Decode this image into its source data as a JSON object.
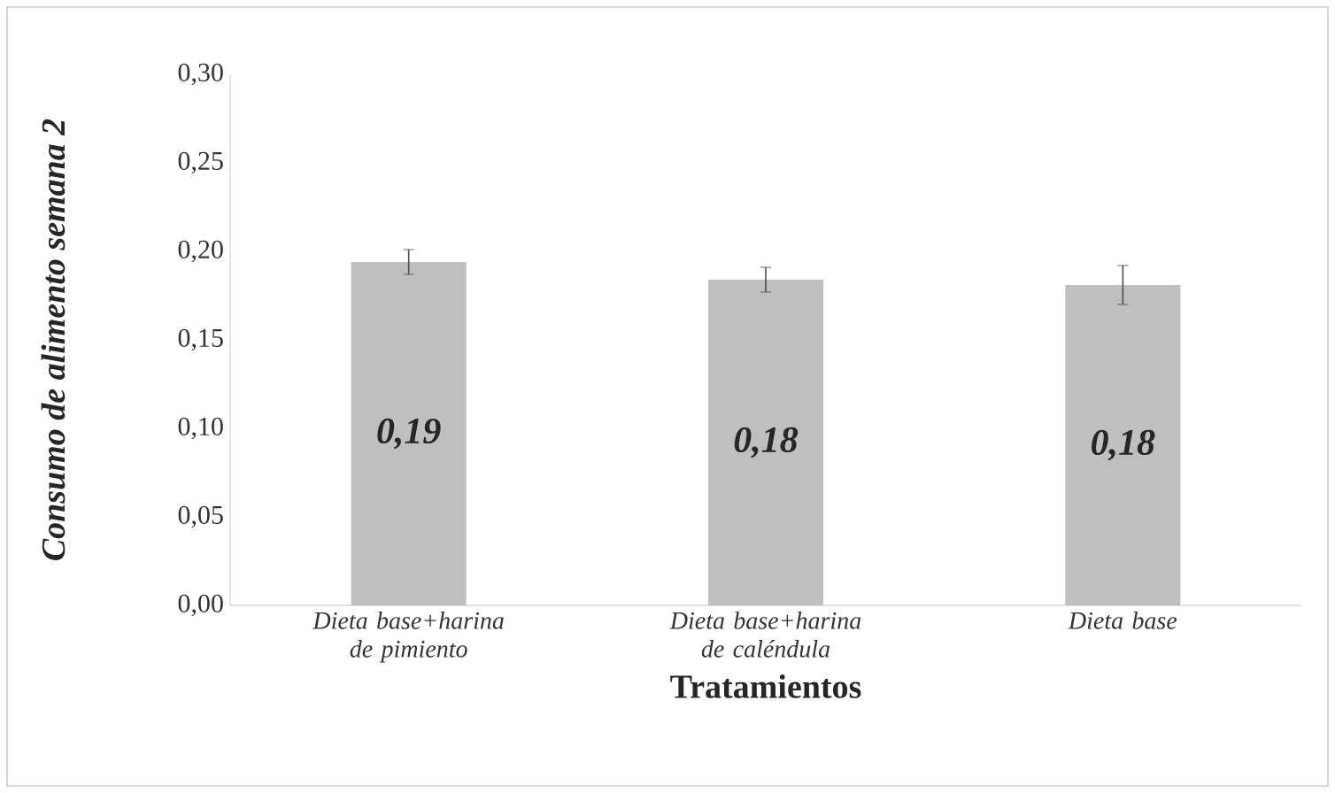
{
  "chart_data": {
    "type": "bar",
    "xlabel": "Tratamientos",
    "ylabel": "Consumo de alimento semana 2",
    "categories": [
      "Dieta base+harina de pimiento",
      "Dieta base+harina de caléndula",
      "Dieta base"
    ],
    "values": [
      0.194,
      0.184,
      0.181
    ],
    "errors": [
      0.007,
      0.007,
      0.011
    ],
    "value_labels": [
      "0,19",
      "0,18",
      "0,18"
    ],
    "color": "#bfbfbf",
    "ylim": [
      0,
      0.3
    ],
    "yticks": [
      {
        "value": 0,
        "label": "0,00"
      },
      {
        "value": 0.05,
        "label": "0,05"
      },
      {
        "value": 0.1,
        "label": "0,10"
      },
      {
        "value": 0.15,
        "label": "0,15"
      },
      {
        "value": 0.2,
        "label": "0,20"
      },
      {
        "value": 0.25,
        "label": "0,25"
      },
      {
        "value": 0.3,
        "label": "0,30"
      }
    ],
    "grid": false
  }
}
